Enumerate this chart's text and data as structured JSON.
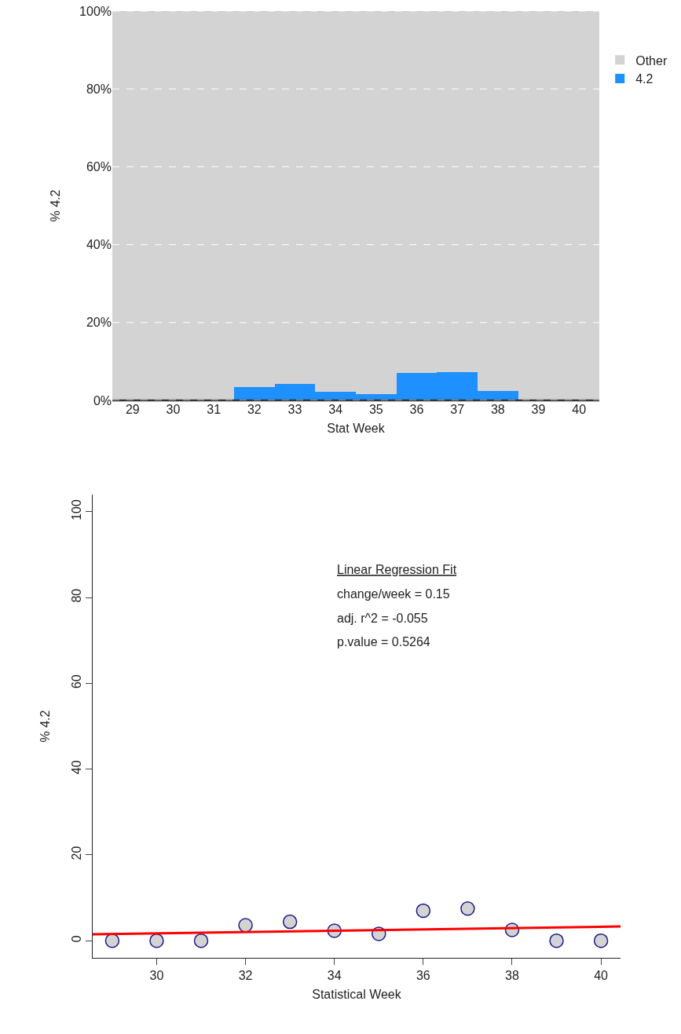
{
  "chart_data": [
    {
      "type": "bar",
      "stacked": true,
      "xlabel": "Stat Week",
      "ylabel": "% 4.2",
      "categories": [
        "29",
        "30",
        "31",
        "32",
        "33",
        "34",
        "35",
        "36",
        "37",
        "38",
        "39",
        "40"
      ],
      "series": [
        {
          "name": "4.2",
          "color": "#1e90ff",
          "values": [
            0,
            0,
            0,
            3.5,
            4.3,
            2.3,
            1.6,
            7.0,
            7.2,
            2.5,
            0,
            0
          ]
        },
        {
          "name": "Other",
          "color": "#d3d3d3",
          "values": [
            100,
            100,
            100,
            96.5,
            95.7,
            97.7,
            98.4,
            93.0,
            92.8,
            97.5,
            100,
            100
          ]
        }
      ],
      "ylim": [
        0,
        100
      ],
      "yticks": [
        {
          "value": 0,
          "label": "0%"
        },
        {
          "value": 20,
          "label": "20%"
        },
        {
          "value": 40,
          "label": "40%"
        },
        {
          "value": 60,
          "label": "60%"
        },
        {
          "value": 80,
          "label": "80%"
        },
        {
          "value": 100,
          "label": "100%"
        }
      ],
      "grid": "y",
      "legend": "right"
    },
    {
      "type": "scatter",
      "xlabel": "Statistical Week",
      "ylabel": "% 4.2",
      "x": [
        29,
        30,
        31,
        32,
        33,
        34,
        35,
        36,
        37,
        38,
        39,
        40
      ],
      "series": [
        {
          "color": "#d3d3d3",
          "values": [
            0,
            0,
            0,
            3.6,
            4.4,
            2.3,
            1.6,
            7.0,
            7.5,
            2.5,
            0,
            0
          ]
        },
        {
          "type": "line",
          "marker": "none",
          "color": "#ff0000",
          "x": [
            28.56,
            40.44
          ],
          "values": [
            1.5,
            3.3
          ]
        }
      ],
      "marker": "circle",
      "xlim": [
        28.56,
        40.44
      ],
      "xticks": [
        30,
        32,
        34,
        36,
        38,
        40
      ],
      "ylim": [
        -4,
        104
      ],
      "yticks": [
        0,
        20,
        40,
        60,
        80,
        100
      ],
      "grid": false,
      "legend": false,
      "annotations": [
        "Linear Regression Fit",
        "change/week = 0.15",
        "adj. r^2 = -0.055",
        "p.value = 0.5264"
      ]
    }
  ]
}
